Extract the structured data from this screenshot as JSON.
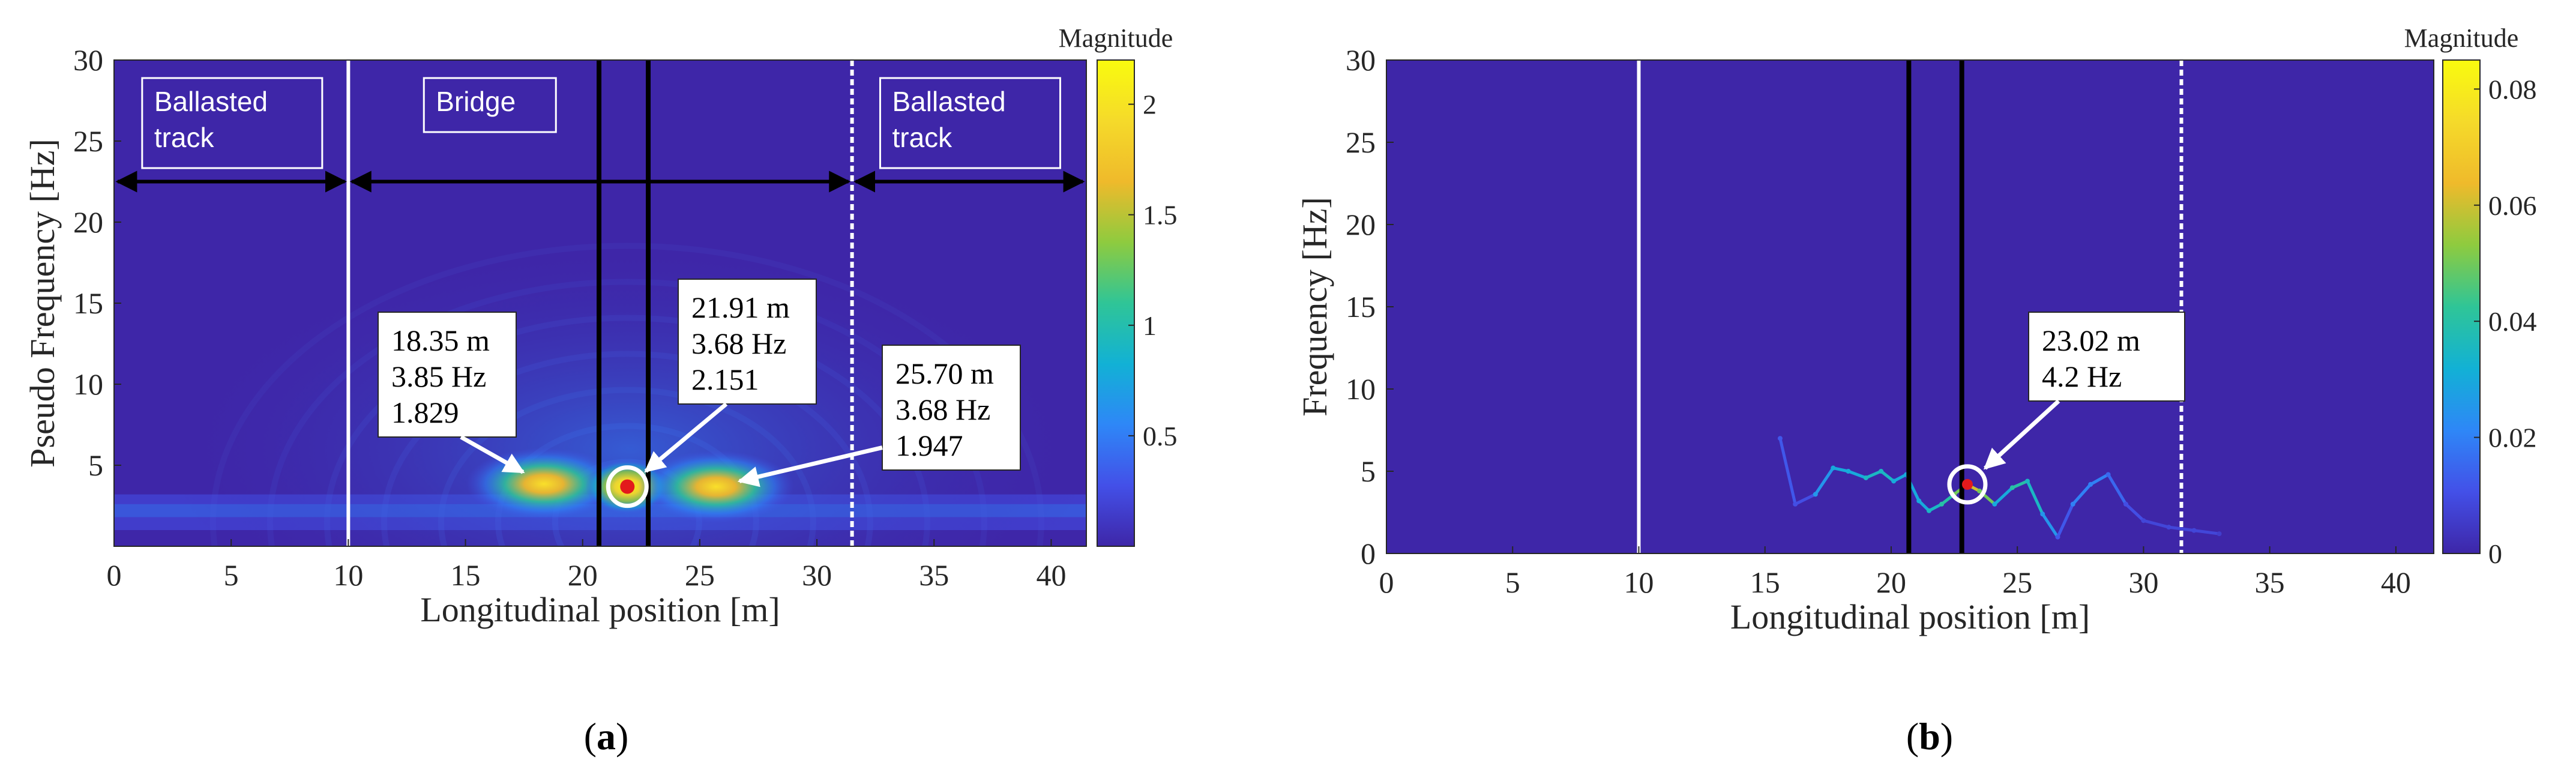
{
  "colors": {
    "plot_background": "#3e26a8",
    "colormap": [
      "#3e26a8",
      "#4350e8",
      "#2e87f7",
      "#12b1d5",
      "#2fc597",
      "#8ecb3f",
      "#efba2b",
      "#f5da2a",
      "#f9fb0e"
    ],
    "boundary_line": "#ffffff",
    "bridge_support_line": "#000000",
    "peak_marker": "#e31a1c"
  },
  "chart_data": [
    {
      "panel_label": "a",
      "type": "heatmap",
      "xlabel": "Longitudinal position [m]",
      "ylabel": "Pseudo Frequency [Hz]",
      "xlim": [
        0,
        41.5
      ],
      "ylim": [
        0,
        30
      ],
      "x_ticks": [
        0,
        5,
        10,
        15,
        20,
        25,
        30,
        35,
        40
      ],
      "y_ticks": [
        5,
        10,
        15,
        20,
        25,
        30
      ],
      "colorbar": {
        "title": "Magnitude",
        "range": [
          0,
          2.2
        ],
        "ticks": [
          0.5,
          1,
          1.5,
          2
        ]
      },
      "regions": [
        {
          "label": "Ballasted track",
          "x_start": 0,
          "x_end": 10
        },
        {
          "label": "Bridge",
          "x_start": 10,
          "x_end": 31.5
        },
        {
          "label": "Ballasted track",
          "x_start": 31.5,
          "x_end": 41.5
        }
      ],
      "vertical_lines": [
        {
          "x": 10,
          "style": "white-solid"
        },
        {
          "x": 20.7,
          "style": "black-solid"
        },
        {
          "x": 22.8,
          "style": "black-solid"
        },
        {
          "x": 31.5,
          "style": "white-dotted"
        }
      ],
      "region_arrow_y": 22.5,
      "peaks": [
        {
          "position": "18.35 m",
          "frequency": "3.85 Hz",
          "magnitude": "1.829",
          "x": 18.35,
          "y": 3.85,
          "value": 1.829
        },
        {
          "position": "21.91 m",
          "frequency": "3.68 Hz",
          "magnitude": "2.151",
          "x": 21.91,
          "y": 3.68,
          "value": 2.151
        },
        {
          "position": "25.70 m",
          "frequency": "3.68 Hz",
          "magnitude": "1.947",
          "x": 25.7,
          "y": 3.68,
          "value": 1.947
        }
      ],
      "highlight_point": {
        "x": 21.91,
        "y": 3.68
      }
    },
    {
      "panel_label": "b",
      "type": "heatmap",
      "xlabel": "Longitudinal position [m]",
      "ylabel": "Frequency [Hz]",
      "xlim": [
        0,
        41.5
      ],
      "ylim": [
        0,
        30
      ],
      "x_ticks": [
        0,
        5,
        10,
        15,
        20,
        25,
        30,
        35,
        40
      ],
      "y_ticks": [
        0,
        5,
        10,
        15,
        20,
        25,
        30
      ],
      "colorbar": {
        "title": "Magnitude",
        "range": [
          0,
          0.085
        ],
        "ticks": [
          0,
          0.02,
          0.04,
          0.06,
          0.08
        ]
      },
      "vertical_lines": [
        {
          "x": 10,
          "style": "white-solid"
        },
        {
          "x": 20.7,
          "style": "black-solid"
        },
        {
          "x": 22.8,
          "style": "black-solid"
        },
        {
          "x": 31.5,
          "style": "white-dotted"
        }
      ],
      "ridge": {
        "x": [
          15.6,
          16.2,
          17.0,
          17.7,
          18.3,
          19.0,
          19.6,
          20.1,
          20.6,
          21.1,
          21.5,
          22.0,
          22.5,
          23.0,
          23.5,
          24.1,
          24.8,
          25.4,
          26.0,
          26.6,
          27.2,
          27.9,
          28.6,
          29.3,
          30.0,
          31.0,
          32.0,
          33.0
        ],
        "y": [
          7.0,
          3.0,
          3.6,
          5.2,
          5.0,
          4.6,
          5.0,
          4.4,
          4.8,
          3.2,
          2.6,
          3.0,
          3.6,
          4.2,
          3.8,
          3.0,
          4.0,
          4.4,
          2.4,
          1.0,
          3.0,
          4.2,
          4.8,
          3.0,
          2.0,
          1.6,
          1.4,
          1.2
        ],
        "value": [
          0.012,
          0.01,
          0.025,
          0.03,
          0.03,
          0.035,
          0.035,
          0.03,
          0.03,
          0.03,
          0.035,
          0.04,
          0.05,
          0.06,
          0.05,
          0.03,
          0.04,
          0.035,
          0.025,
          0.012,
          0.02,
          0.02,
          0.015,
          0.01,
          0.008,
          0.008,
          0.008,
          0.006
        ]
      },
      "peaks": [
        {
          "position": "23.02 m",
          "frequency": "4.2 Hz",
          "x": 23.02,
          "y": 4.2
        }
      ],
      "highlight_point": {
        "x": 23.02,
        "y": 4.2
      }
    }
  ]
}
